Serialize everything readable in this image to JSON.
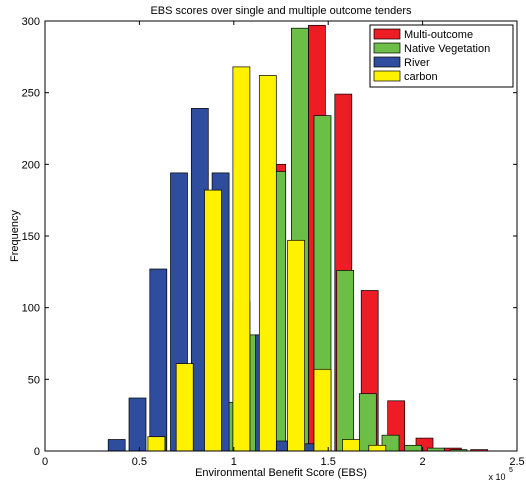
{
  "chart_data": {
    "type": "bar",
    "title": "EBS scores over single and multiple outcome tenders",
    "xlabel": "Environmental Benefit Score (EBS)",
    "ylabel": "Frequency",
    "x_multiplier_label": "x 10",
    "x_multiplier_exponent": "5",
    "xlim": [
      0,
      2.5
    ],
    "ylim": [
      0,
      300
    ],
    "xticks": [
      "0",
      "0.5",
      "1",
      "1.5",
      "2",
      "2.5"
    ],
    "yticks": [
      "0",
      "50",
      "100",
      "150",
      "200",
      "250",
      "300"
    ],
    "legend_position": "top-right",
    "grid": false,
    "series": [
      {
        "name": "Multi-outcome",
        "color": "#ee1c25",
        "x": [
          1.08,
          1.23,
          1.44,
          1.58,
          1.72,
          1.86,
          2.01,
          2.16,
          2.3
        ],
        "values": [
          55,
          200,
          297,
          249,
          112,
          35,
          9,
          2,
          1
        ]
      },
      {
        "name": "Native Vegetation",
        "color": "#6bbf47",
        "x": [
          0.81,
          0.96,
          1.11,
          1.23,
          1.35,
          1.47,
          1.59,
          1.71,
          1.83,
          1.95,
          2.07,
          2.19
        ],
        "values": [
          2,
          34,
          81,
          195,
          295,
          234,
          126,
          40,
          11,
          4,
          2,
          1
        ]
      },
      {
        "name": "River",
        "color": "#2e4d9e",
        "x": [
          0.38,
          0.49,
          0.6,
          0.71,
          0.82,
          0.93,
          1.04,
          1.16,
          1.27,
          1.38
        ],
        "values": [
          8,
          37,
          127,
          194,
          239,
          194,
          104,
          81,
          7,
          5
        ]
      },
      {
        "name": "carbon",
        "color": "#fff200",
        "x": [
          0.59,
          0.74,
          0.89,
          1.04,
          1.18,
          1.33,
          1.47,
          1.62,
          1.76
        ],
        "values": [
          10,
          61,
          182,
          268,
          262,
          147,
          57,
          8,
          4
        ]
      }
    ]
  }
}
